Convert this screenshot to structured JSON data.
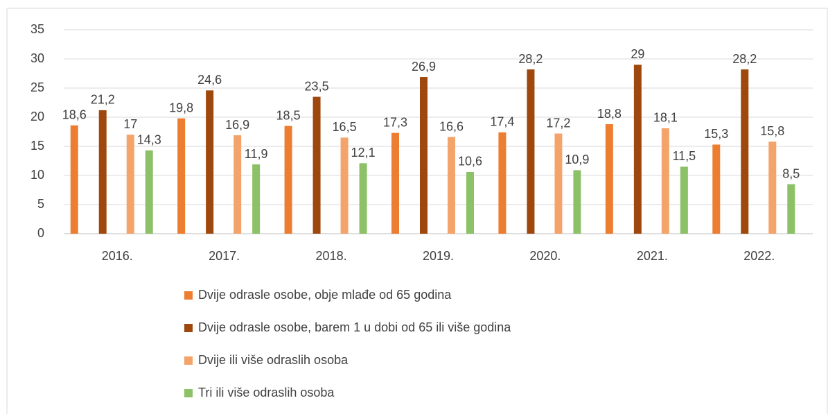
{
  "chart_data": {
    "type": "bar",
    "categories": [
      "2016.",
      "2017.",
      "2018.",
      "2019.",
      "2020.",
      "2021.",
      "2022."
    ],
    "series": [
      {
        "name": "Dvije odrasle osobe, obje mlađe od 65 godina",
        "color": "#ed7d31",
        "values": [
          18.6,
          19.8,
          18.5,
          17.3,
          17.4,
          18.8,
          15.3
        ],
        "value_labels": [
          "18,6",
          "19,8",
          "18,5",
          "17,3",
          "17,4",
          "18,8",
          "15,3"
        ]
      },
      {
        "name": "Dvije odrasle osobe, barem 1 u dobi od 65 ili više godina",
        "color": "#9e480e",
        "values": [
          21.2,
          24.6,
          23.5,
          26.9,
          28.2,
          29,
          28.2
        ],
        "value_labels": [
          "21,2",
          "24,6",
          "23,5",
          "26,9",
          "28,2",
          "29",
          "28,2"
        ]
      },
      {
        "name": "Dvije ili više odraslih osoba",
        "color": "#f4a46a",
        "values": [
          17,
          16.9,
          16.5,
          16.6,
          17.2,
          18.1,
          15.8
        ],
        "value_labels": [
          "17",
          "16,9",
          "16,5",
          "16,6",
          "17,2",
          "18,1",
          "15,8"
        ]
      },
      {
        "name": "Tri ili više odraslih osoba",
        "color": "#8cc168",
        "values": [
          14.3,
          11.9,
          12.1,
          10.6,
          10.9,
          11.5,
          8.5
        ],
        "value_labels": [
          "14,3",
          "11,9",
          "12,1",
          "10,6",
          "10,9",
          "11,5",
          "8,5"
        ]
      }
    ],
    "ylim": [
      0,
      35
    ],
    "yticks": [
      0,
      5,
      10,
      15,
      20,
      25,
      30,
      35
    ],
    "grid": true,
    "legend": "bottom"
  }
}
